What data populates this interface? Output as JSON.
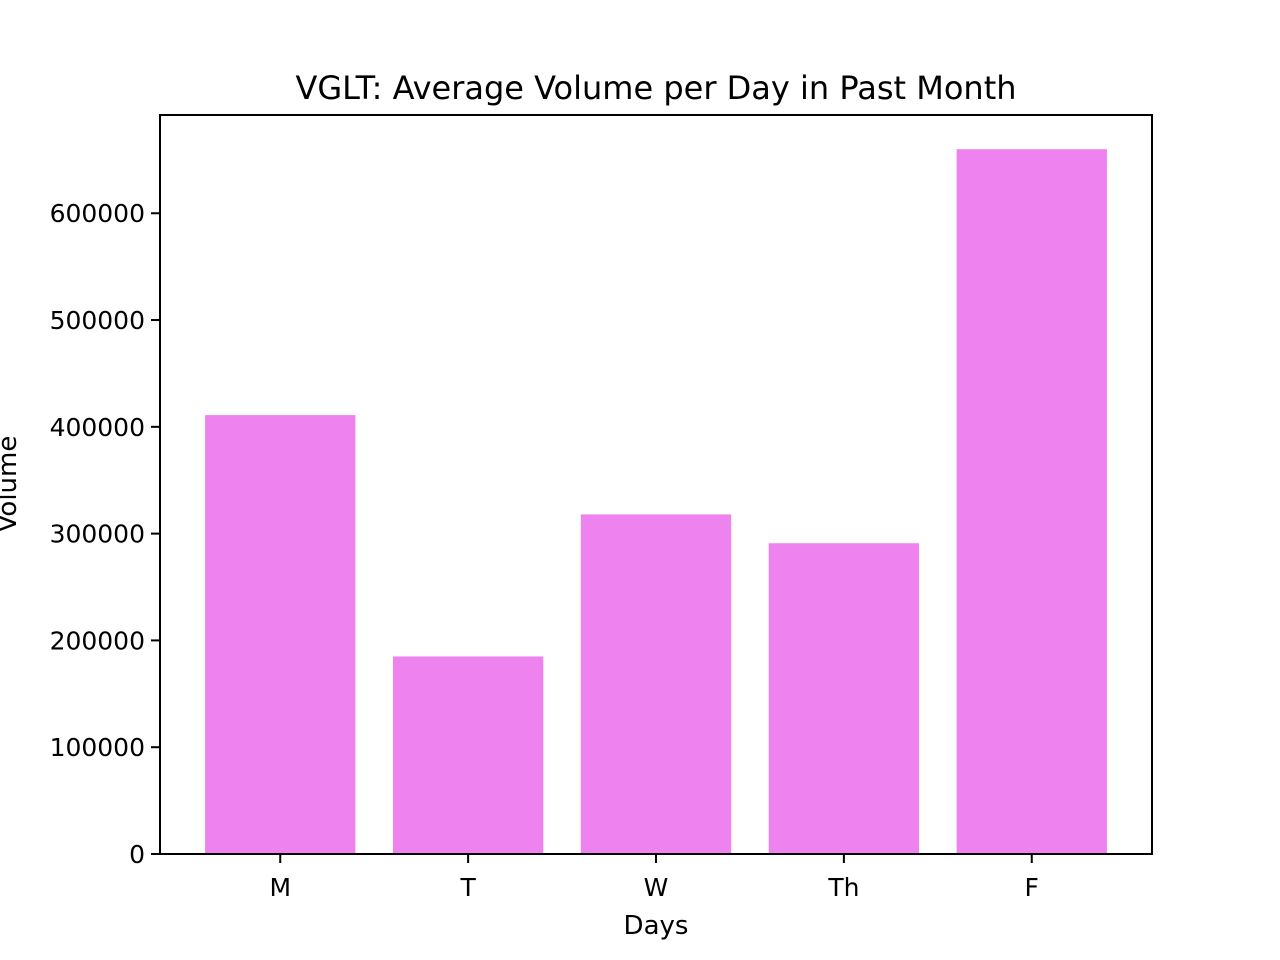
{
  "chart_data": {
    "type": "bar",
    "title": "VGLT: Average Volume per Day in Past Month",
    "xlabel": "Days",
    "ylabel": "Volume",
    "categories": [
      "M",
      "T",
      "W",
      "Th",
      "F"
    ],
    "values": [
      411000,
      185000,
      318000,
      291000,
      660000
    ],
    "ylim": [
      0,
      692000
    ],
    "yticks": [
      0,
      100000,
      200000,
      300000,
      400000,
      500000,
      600000
    ],
    "ytick_labels": [
      "0",
      "100000",
      "200000",
      "300000",
      "400000",
      "500000",
      "600000"
    ],
    "bar_color": "#ee82ee",
    "grid": false,
    "legend": "none"
  }
}
